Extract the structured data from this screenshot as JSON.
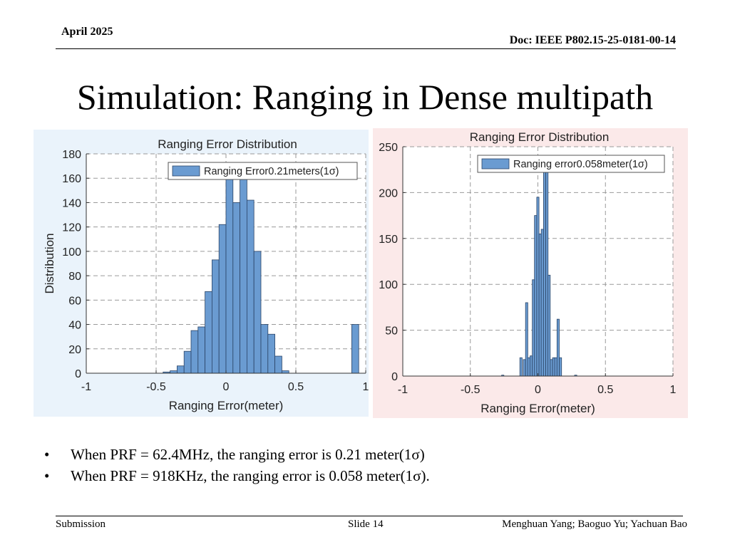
{
  "header": {
    "date": "April 2025",
    "doc_id": "Doc: IEEE P802.15-25-0181-00-14"
  },
  "slide": {
    "title": "Simulation: Ranging in Dense multipath"
  },
  "bullets": [
    "When PRF = 62.4MHz, the ranging error is 0.21 meter(1σ)",
    "When PRF = 918KHz, the ranging error is 0.058 meter(1σ)."
  ],
  "footer": {
    "left": "Submission",
    "center": "Slide 14",
    "right": "Menghuan Yang; Baoguo Yu; Yachuan Bao"
  },
  "colors": {
    "bar_fill": "#6a9bd1",
    "bar_stroke": "#2b4466",
    "left_panel_bg": "#eaf3fb",
    "right_panel_bg": "#fbe9e9"
  },
  "chart_data": [
    {
      "type": "bar",
      "title": "Ranging Error Distribution",
      "xlabel": "Ranging Error(meter)",
      "ylabel": "Distribution",
      "legend": "Ranging  Error0.21meters(1σ)",
      "legend_position": "top-right",
      "grid": true,
      "xlim": [
        -1,
        1
      ],
      "ylim": [
        0,
        180
      ],
      "xticks": [
        "-1",
        "-0.5",
        "0",
        "0.5",
        "1"
      ],
      "yticks": [
        "0",
        "20",
        "40",
        "60",
        "80",
        "100",
        "120",
        "140",
        "160",
        "180"
      ],
      "bin_width": 0.05,
      "bin_centers": [
        -0.425,
        -0.375,
        -0.325,
        -0.275,
        -0.225,
        -0.175,
        -0.125,
        -0.075,
        -0.025,
        0.025,
        0.075,
        0.125,
        0.175,
        0.225,
        0.275,
        0.325,
        0.375,
        0.425,
        0.925
      ],
      "values": [
        1,
        2,
        6,
        18,
        35,
        38,
        67,
        93,
        122,
        170,
        140,
        165,
        142,
        100,
        40,
        32,
        14,
        2,
        40
      ]
    },
    {
      "type": "bar",
      "title": "Ranging Error Distribution",
      "xlabel": "Ranging Error(meter)",
      "ylabel": "",
      "legend": "Ranging  error0.058meter(1σ)",
      "legend_position": "top-right",
      "grid": true,
      "xlim": [
        -1,
        1
      ],
      "ylim": [
        0,
        250
      ],
      "xticks": [
        "-1",
        "-0.5",
        "0",
        "0.5",
        "1"
      ],
      "yticks": [
        "0",
        "50",
        "100",
        "150",
        "200",
        "250"
      ],
      "bin_width": 0.0167,
      "bin_centers": [
        -0.26,
        -0.125,
        -0.1,
        -0.083,
        -0.067,
        -0.05,
        -0.033,
        -0.017,
        0,
        0.017,
        0.033,
        0.05,
        0.067,
        0.083,
        0.1,
        0.117,
        0.133,
        0.15,
        0.167,
        0.28
      ],
      "values": [
        1,
        20,
        18,
        80,
        20,
        22,
        105,
        175,
        195,
        155,
        160,
        225,
        222,
        110,
        18,
        20,
        20,
        62,
        20,
        1
      ]
    }
  ]
}
